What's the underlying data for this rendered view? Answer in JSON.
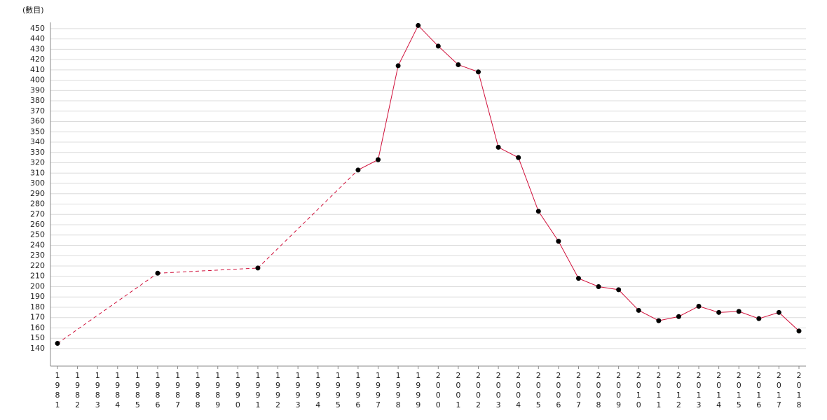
{
  "chart_data": {
    "type": "line",
    "y_label": "(數目)",
    "categories": [
      "1981",
      "1982",
      "1983",
      "1984",
      "1985",
      "1986",
      "1987",
      "1988",
      "1989",
      "1990",
      "1991",
      "1992",
      "1993",
      "1994",
      "1995",
      "1996",
      "1997",
      "1998",
      "1999",
      "2000",
      "2001",
      "2002",
      "2003",
      "2004",
      "2005",
      "2006",
      "2007",
      "2008",
      "2009",
      "2010",
      "2011",
      "2012",
      "2013",
      "2014",
      "2015",
      "2016",
      "2017",
      "2018"
    ],
    "series": [
      {
        "color": "#d0103a",
        "values": [
          145,
          null,
          null,
          null,
          null,
          213,
          null,
          null,
          null,
          null,
          218,
          null,
          null,
          null,
          null,
          313,
          323,
          414,
          453,
          433,
          415,
          408,
          335,
          325,
          273,
          244,
          208,
          200,
          197,
          177,
          167,
          171,
          181,
          175,
          176,
          169,
          175,
          157
        ]
      }
    ],
    "ylim": [
      123,
      456
    ],
    "yticks": [
      140,
      150,
      160,
      170,
      180,
      190,
      200,
      210,
      220,
      230,
      240,
      250,
      260,
      270,
      280,
      290,
      300,
      310,
      320,
      330,
      340,
      350,
      360,
      370,
      380,
      390,
      400,
      410,
      420,
      430,
      440,
      450
    ],
    "grid": true
  }
}
